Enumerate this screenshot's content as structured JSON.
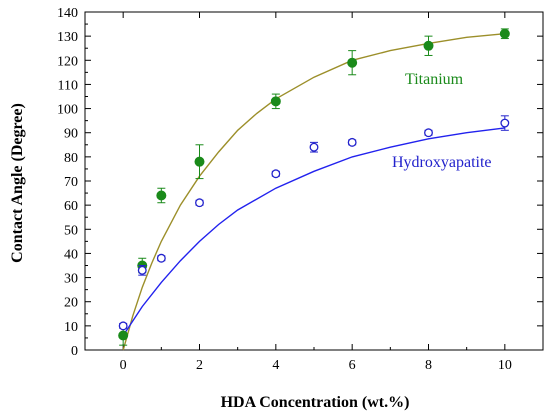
{
  "chart_data": {
    "type": "scatter",
    "title": "",
    "xlabel": "HDA Concentration (wt.%)",
    "ylabel": "Contact Angle (Degree)",
    "xlim": [
      -1,
      11
    ],
    "ylim": [
      0,
      140
    ],
    "xticks": [
      0,
      2,
      4,
      6,
      8,
      10
    ],
    "yticks": [
      0,
      10,
      20,
      30,
      40,
      50,
      60,
      70,
      80,
      90,
      100,
      110,
      120,
      130,
      140
    ],
    "grid": false,
    "legend": "none",
    "series": [
      {
        "name": "Titanium",
        "color": "#1a8a1a",
        "fit_color": "#9c8f2a",
        "marker": "filled-circle",
        "points": [
          {
            "x": 0,
            "y": 6,
            "err": 4
          },
          {
            "x": 0.5,
            "y": 35,
            "err": 3
          },
          {
            "x": 1,
            "y": 64,
            "err": 3
          },
          {
            "x": 2,
            "y": 78,
            "err": 7
          },
          {
            "x": 4,
            "y": 103,
            "err": 3
          },
          {
            "x": 6,
            "y": 119,
            "err": 5
          },
          {
            "x": 8,
            "y": 126,
            "err": 4
          },
          {
            "x": 10,
            "y": 131,
            "err": 2
          }
        ],
        "fit": [
          {
            "x": 0,
            "y": 0
          },
          {
            "x": 0.25,
            "y": 14
          },
          {
            "x": 0.5,
            "y": 26
          },
          {
            "x": 0.75,
            "y": 36
          },
          {
            "x": 1,
            "y": 45
          },
          {
            "x": 1.5,
            "y": 60
          },
          {
            "x": 2,
            "y": 72
          },
          {
            "x": 2.5,
            "y": 82
          },
          {
            "x": 3,
            "y": 91
          },
          {
            "x": 3.5,
            "y": 98
          },
          {
            "x": 4,
            "y": 104
          },
          {
            "x": 5,
            "y": 113
          },
          {
            "x": 6,
            "y": 120
          },
          {
            "x": 7,
            "y": 124
          },
          {
            "x": 8,
            "y": 127
          },
          {
            "x": 9,
            "y": 129.5
          },
          {
            "x": 10,
            "y": 131
          }
        ]
      },
      {
        "name": "Hydroxyapatite",
        "color": "#2222cc",
        "fit_color": "#2222ee",
        "marker": "open-circle",
        "points": [
          {
            "x": 0,
            "y": 10,
            "err": 1
          },
          {
            "x": 0.5,
            "y": 33,
            "err": 2
          },
          {
            "x": 1,
            "y": 38,
            "err": 1
          },
          {
            "x": 2,
            "y": 61,
            "err": 1
          },
          {
            "x": 4,
            "y": 73,
            "err": 1
          },
          {
            "x": 5,
            "y": 84,
            "err": 2
          },
          {
            "x": 6,
            "y": 86,
            "err": 1
          },
          {
            "x": 8,
            "y": 90,
            "err": 1
          },
          {
            "x": 10,
            "y": 94,
            "err": 3
          }
        ],
        "fit": [
          {
            "x": 0,
            "y": 6
          },
          {
            "x": 0.5,
            "y": 18
          },
          {
            "x": 1,
            "y": 28
          },
          {
            "x": 1.5,
            "y": 37
          },
          {
            "x": 2,
            "y": 45
          },
          {
            "x": 2.5,
            "y": 52
          },
          {
            "x": 3,
            "y": 58
          },
          {
            "x": 4,
            "y": 67
          },
          {
            "x": 5,
            "y": 74
          },
          {
            "x": 6,
            "y": 80
          },
          {
            "x": 7,
            "y": 84
          },
          {
            "x": 8,
            "y": 87.5
          },
          {
            "x": 9,
            "y": 90
          },
          {
            "x": 10,
            "y": 92
          }
        ]
      }
    ]
  }
}
